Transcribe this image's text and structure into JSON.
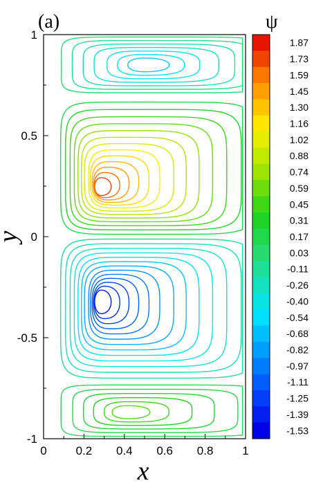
{
  "chart_data": {
    "type": "contour",
    "panel_label": "(a)",
    "xlabel": "x",
    "ylabel": "y",
    "xlim": [
      0,
      1
    ],
    "ylim": [
      -1,
      1
    ],
    "x_ticks": [
      "0",
      "0.2",
      "0.4",
      "0.6",
      "0.8",
      "1"
    ],
    "y_ticks": [
      "-1",
      "-0.5",
      "0",
      "0.5",
      "1"
    ],
    "colorbar": {
      "title": "ψ",
      "levels": [
        1.87,
        1.73,
        1.59,
        1.45,
        1.3,
        1.16,
        1.02,
        0.88,
        0.74,
        0.59,
        0.45,
        0.31,
        0.17,
        0.03,
        -0.11,
        -0.26,
        -0.4,
        -0.54,
        -0.68,
        -0.82,
        -0.97,
        -1.11,
        -1.25,
        -1.39,
        -1.53
      ],
      "labels": [
        "1.87",
        "1.73",
        "1.59",
        "1.45",
        "1.30",
        "1.16",
        "1.02",
        "0.88",
        "0.74",
        "0.59",
        "0.45",
        "0.31",
        "0.17",
        "0.03",
        "-0.11",
        "-0.26",
        "-0.40",
        "-0.54",
        "-0.68",
        "-0.82",
        "-0.97",
        "-1.11",
        "-1.25",
        "-1.39",
        "-1.53"
      ]
    },
    "vortices": [
      {
        "cx": 0.27,
        "cy": 0.24,
        "peak": 1.87
      },
      {
        "cx": 0.27,
        "cy": -0.32,
        "peak": -1.53
      },
      {
        "cx": 0.5,
        "cy": 0.85,
        "peak": -0.75
      },
      {
        "cx": 0.4,
        "cy": -0.87,
        "peak": 0.59
      }
    ]
  }
}
